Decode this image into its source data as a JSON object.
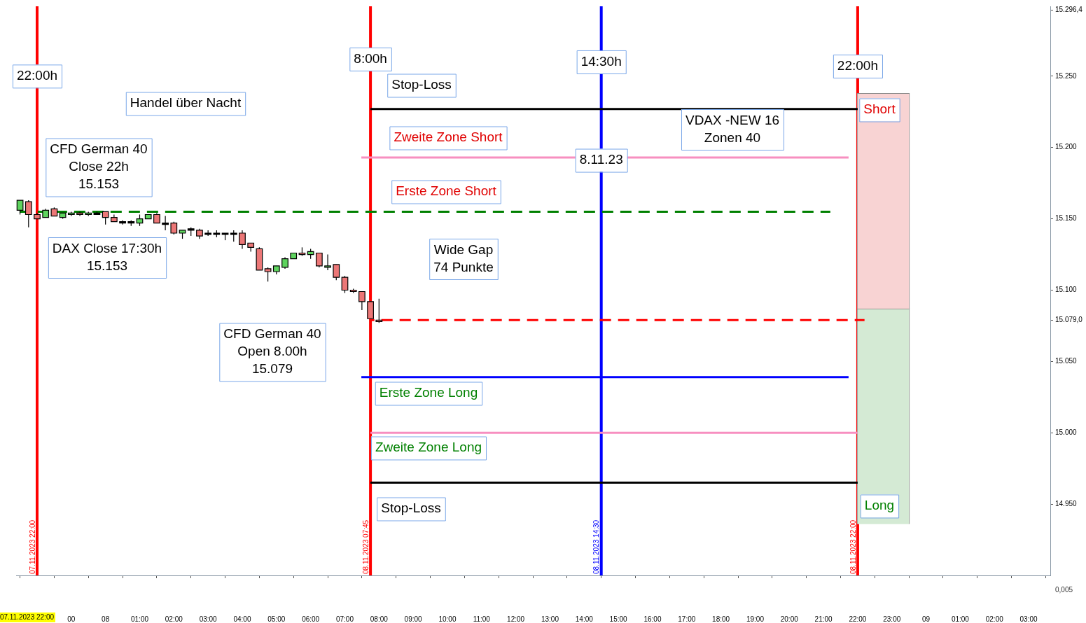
{
  "chart_data": {
    "type": "candlestick",
    "x": [
      "2023-11-07T21:30",
      "2023-11-07T21:45",
      "2023-11-07T22:00",
      "2023-11-07T22:15",
      "2023-11-07T22:30",
      "2023-11-07T22:45",
      "2023-11-07T23:00",
      "2023-11-07T23:15",
      "2023-11-07T23:30",
      "2023-11-07T23:45",
      "2023-11-08T00:00",
      "2023-11-08T00:15",
      "2023-11-08T00:30",
      "2023-11-08T00:45",
      "2023-11-08T01:00",
      "2023-11-08T01:15",
      "2023-11-08T01:30",
      "2023-11-08T01:45",
      "2023-11-08T02:00",
      "2023-11-08T02:15",
      "2023-11-08T02:30",
      "2023-11-08T02:45",
      "2023-11-08T03:00",
      "2023-11-08T03:15",
      "2023-11-08T03:30",
      "2023-11-08T03:45",
      "2023-11-08T04:00",
      "2023-11-08T04:15",
      "2023-11-08T04:30",
      "2023-11-08T04:45",
      "2023-11-08T05:00",
      "2023-11-08T05:15",
      "2023-11-08T05:30",
      "2023-11-08T05:45",
      "2023-11-08T06:00",
      "2023-11-08T06:15",
      "2023-11-08T06:30",
      "2023-11-08T06:45",
      "2023-11-08T07:00",
      "2023-11-08T07:15",
      "2023-11-08T07:30",
      "2023-11-08T07:45",
      "2023-11-08T08:00"
    ],
    "ohlc": [
      [
        15156,
        15163,
        15153,
        15163
      ],
      [
        15162,
        15163,
        15144,
        15153
      ],
      [
        15153,
        15154,
        15150,
        15150
      ],
      [
        15151,
        15157,
        15151,
        15156
      ],
      [
        15157,
        15158,
        15152,
        15152
      ],
      [
        15151,
        15154,
        15150,
        15154
      ],
      [
        15153,
        15155,
        15152,
        15154
      ],
      [
        15154,
        15155,
        15152,
        15153
      ],
      [
        15153,
        15155,
        15152,
        15154
      ],
      [
        15154,
        15155,
        15153,
        15154
      ],
      [
        15155,
        15155,
        15146,
        15151
      ],
      [
        15151,
        15153,
        15148,
        15148
      ],
      [
        15148,
        15149,
        15146,
        15148
      ],
      [
        15148,
        15149,
        15145,
        15148
      ],
      [
        15147,
        15153,
        15145,
        15150
      ],
      [
        15150,
        15153,
        15150,
        15153
      ],
      [
        15153,
        15154,
        15147,
        15147
      ],
      [
        15147,
        15152,
        15142,
        15147
      ],
      [
        15147,
        15148,
        15139,
        15140
      ],
      [
        15140,
        15142,
        15136,
        15142
      ],
      [
        15143,
        15144,
        15138,
        15143
      ],
      [
        15142,
        15143,
        15136,
        15138
      ],
      [
        15140,
        15142,
        15138,
        15140
      ],
      [
        15140,
        15142,
        15137,
        15140
      ],
      [
        15140,
        15140,
        15135,
        15140
      ],
      [
        15140,
        15142,
        15134,
        15140
      ],
      [
        15140,
        15142,
        15129,
        15132
      ],
      [
        15133,
        15133,
        15127,
        15130
      ],
      [
        15129,
        15130,
        15114,
        15114
      ],
      [
        15115,
        15116,
        15106,
        15113
      ],
      [
        15113,
        15117,
        15111,
        15117
      ],
      [
        15116,
        15123,
        15115,
        15122
      ],
      [
        15122,
        15126,
        15122,
        15126
      ],
      [
        15126,
        15130,
        15124,
        15125
      ],
      [
        15125,
        15129,
        15122,
        15127
      ],
      [
        15126,
        15126,
        15116,
        15117
      ],
      [
        15116,
        15125,
        15114,
        15117
      ],
      [
        15118,
        15118,
        15107,
        15109
      ],
      [
        15109,
        15110,
        15098,
        15100
      ],
      [
        15100,
        15101,
        15098,
        15099
      ],
      [
        15099,
        15099,
        15086,
        15092
      ],
      [
        15092,
        15092,
        15080,
        15080
      ],
      [
        15079,
        15094,
        15077,
        15078
      ]
    ],
    "series": [
      {
        "type": "line",
        "x": [
          "2023-11-08T07:45",
          "2023-11-08T22:00"
        ],
        "values": [
          15227,
          15227
        ],
        "color": "#000000"
      },
      {
        "type": "line",
        "x": [
          "2023-11-08T07:29",
          "2023-11-08T21:44"
        ],
        "values": [
          15193,
          15193
        ],
        "color": "#f78fc0"
      },
      {
        "type": "line",
        "x": [
          "2023-11-07T21:24",
          "2023-11-08T21:12"
        ],
        "values": [
          15155,
          15155
        ],
        "color": "#008000",
        "line_style": "dashed"
      },
      {
        "type": "line",
        "x": [
          "2023-11-08T07:45",
          "2023-11-08T22:12"
        ],
        "values": [
          15079,
          15079
        ],
        "color": "#ff0000",
        "line_style": "dashed"
      },
      {
        "type": "line",
        "x": [
          "2023-11-08T07:29",
          "2023-11-08T21:44"
        ],
        "values": [
          15039,
          15039
        ],
        "color": "#0000ff"
      },
      {
        "type": "line",
        "x": [
          "2023-11-08T07:45",
          "2023-11-08T22:00"
        ],
        "values": [
          15000,
          15000
        ],
        "color": "#f78fc0"
      },
      {
        "type": "line",
        "x": [
          "2023-11-08T07:45",
          "2023-11-08T22:00"
        ],
        "values": [
          14965,
          14965
        ],
        "color": "#000000"
      },
      {
        "type": "bar",
        "x": [
          "2023-11-08T22:45",
          "2023-11-08T22:45"
        ],
        "base": [
          15087,
          14936
        ],
        "values": [
          151,
          151
        ],
        "colors": [
          "#f8d3d3",
          "#d4ead4"
        ]
      }
    ],
    "ref_lines": [
      {
        "axis": "x",
        "value": "2023-11-07T22:00",
        "label": "07.11.2023 22:00",
        "color": "#ff0000"
      },
      {
        "axis": "x",
        "value": "2023-11-08T07:45",
        "label": "08.11.2023 07:45",
        "color": "#ff0000"
      },
      {
        "axis": "x",
        "value": "2023-11-08T14:30",
        "label": "08.11.2023 14:30",
        "color": "#0000ff"
      },
      {
        "axis": "x",
        "value": "2023-11-08T22:00",
        "label": "08.11.2023 22:00",
        "color": "#ff0000"
      }
    ],
    "annotations": [
      {
        "text": "22:00h",
        "x": "2023-11-07T22:00",
        "y": 15250
      },
      {
        "text": "8:00h",
        "x": "2023-11-08T07:45",
        "y": 15262
      },
      {
        "text": "14:30h",
        "x": "2023-11-08T14:30",
        "y": 15260
      },
      {
        "text": "22:00h",
        "x": "2023-11-08T22:00",
        "y": 15257
      },
      "Stop-Loss",
      "Handel über Nacht",
      "CFD German 40\nClose 22h\n15.153",
      "Zweite Zone Short",
      {
        "text": "8.11.23",
        "x": "2023-11-08T14:30",
        "y": 15191
      },
      "VDAX -NEW 16\nZonen 40",
      "Erste Zone Short",
      "DAX Close 17:30h\n15.153",
      "Wide Gap\n74 Punkte",
      "CFD German 40\nOpen 8.00h\n15.079",
      "Erste Zone Long",
      "Zweite Zone Long",
      "Stop-Loss",
      "Short",
      "Long",
      "07.11.2023 22:00",
      "0,005"
    ],
    "xlim": [
      "2023-11-07T21:24",
      "2023-11-09T03:38"
    ],
    "xticks": [
      {
        "value": "2023-11-07T22:00",
        "label": null
      },
      {
        "value": "2023-11-07T23:00",
        "label": "00"
      },
      {
        "value": "2023-11-08T00:00",
        "label": "08"
      },
      {
        "value": "2023-11-08T01:00",
        "label": "01:00"
      },
      {
        "value": "2023-11-08T02:00",
        "label": "02:00"
      },
      {
        "value": "2023-11-08T03:00",
        "label": "03:00"
      },
      {
        "value": "2023-11-08T04:00",
        "label": "04:00"
      },
      {
        "value": "2023-11-08T05:00",
        "label": "05:00"
      },
      {
        "value": "2023-11-08T06:00",
        "label": "06:00"
      },
      {
        "value": "2023-11-08T07:00",
        "label": "07:00"
      },
      {
        "value": "2023-11-08T08:00",
        "label": "08:00"
      },
      {
        "value": "2023-11-08T09:00",
        "label": "09:00"
      },
      {
        "value": "2023-11-08T10:00",
        "label": "10:00"
      },
      {
        "value": "2023-11-08T11:00",
        "label": "11:00"
      },
      {
        "value": "2023-11-08T12:00",
        "label": "12:00"
      },
      {
        "value": "2023-11-08T13:00",
        "label": "13:00"
      },
      {
        "value": "2023-11-08T14:00",
        "label": "14:00"
      },
      {
        "value": "2023-11-08T15:00",
        "label": "15:00"
      },
      {
        "value": "2023-11-08T16:00",
        "label": "16:00"
      },
      {
        "value": "2023-11-08T17:00",
        "label": "17:00"
      },
      {
        "value": "2023-11-08T18:00",
        "label": "18:00"
      },
      {
        "value": "2023-11-08T19:00",
        "label": "19:00"
      },
      {
        "value": "2023-11-08T20:00",
        "label": "20:00"
      },
      {
        "value": "2023-11-08T21:00",
        "label": "21:00"
      },
      {
        "value": "2023-11-08T22:00",
        "label": "22:00"
      },
      {
        "value": "2023-11-08T23:00",
        "label": "23:00"
      },
      {
        "value": "2023-11-09T00:00",
        "label": "09"
      },
      {
        "value": "2023-11-09T01:00",
        "label": "01:00"
      },
      {
        "value": "2023-11-09T02:00",
        "label": "02:00"
      },
      {
        "value": "2023-11-09T03:00",
        "label": "03:00"
      }
    ],
    "ylim": [
      14900,
      15299
    ],
    "yticks": [
      {
        "value": 14950,
        "label": "14.950"
      },
      {
        "value": 15000,
        "label": "15.000"
      },
      {
        "value": 15050,
        "label": "15.050"
      },
      {
        "value": 15079,
        "label": "15.079,0"
      },
      {
        "value": 15100,
        "label": "15.100"
      },
      {
        "value": 15150,
        "label": "15.150"
      },
      {
        "value": 15200,
        "label": "15.200"
      },
      {
        "value": 15250,
        "label": "15.250"
      },
      {
        "value": 15296.4,
        "label": "15.296,4"
      }
    ]
  }
}
